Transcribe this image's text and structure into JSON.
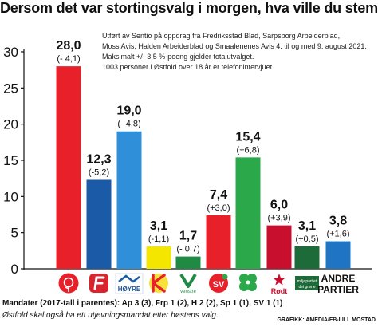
{
  "chart_data": {
    "type": "bar",
    "title": "Dersom det var stortingsvalg i morgen, hva ville du stemt?",
    "ylim": [
      0,
      30
    ],
    "yticks": [
      0,
      5,
      10,
      15,
      20,
      25,
      30
    ],
    "grid": false,
    "categories": [
      "Ap",
      "Frp",
      "Høyre",
      "KrF",
      "Venstre",
      "SV",
      "Sp",
      "Rødt",
      "MDG",
      "Andre partier"
    ],
    "values": [
      28.0,
      12.3,
      19.0,
      3.1,
      1.7,
      7.4,
      15.4,
      6.0,
      3.1,
      3.8
    ],
    "value_labels": [
      "28,0",
      "12,3",
      "19,0",
      "3,1",
      "1,7",
      "7,4",
      "15,4",
      "6,0",
      "3,1",
      "3,8"
    ],
    "change_labels": [
      "(- 4,1)",
      "(-5,2)",
      "(- 4,8)",
      "(-1,1)",
      "(- 0,7)",
      "(+3,0)",
      "(+6,8)",
      "(+3,9)",
      "(+0,5)",
      "(+1,6)"
    ],
    "colors": [
      "#e8202a",
      "#1b5aa6",
      "#2f8fd8",
      "#f5e600",
      "#1e8a43",
      "#e8202a",
      "#2aa84a",
      "#c8102e",
      "#1e6b3a",
      "#1f74c4"
    ]
  },
  "notes": [
    "Utført av Sentio på oppdrag fra Fredriksstad Blad, Sarpsborg Arbeiderblad,",
    "Moss Avis, Halden Arbeiderblad og Smaalenenes Avis 4. til og med 9. august 2021.",
    "Maksimalt +/- 3,5 %-poeng gjelder totalutvalget.",
    "1003 personer i Østfold over 18 år er telefonintervjuet."
  ],
  "logos": {
    "hoyre": "HØYRE",
    "venstre": "venstre",
    "sv": "SV",
    "rodt": "Rødt",
    "mdg_line1": "miljøpartiet",
    "mdg_line2": "dei grøne",
    "andre_line1": "ANDRE",
    "andre_line2": "PARTIER"
  },
  "footer": {
    "mandater": "Mandater (2017-tall i parentes): Ap 3 (3), Frp 1 (2), H 2 (2), Sp 1 (1), SV 1 (1)",
    "utjevning": "Østfold skal også ha ett utjevningsmandat etter høstens valg.",
    "credit": "GRAFIKK: AMEDIA/FB-LILL MOSTAD"
  }
}
